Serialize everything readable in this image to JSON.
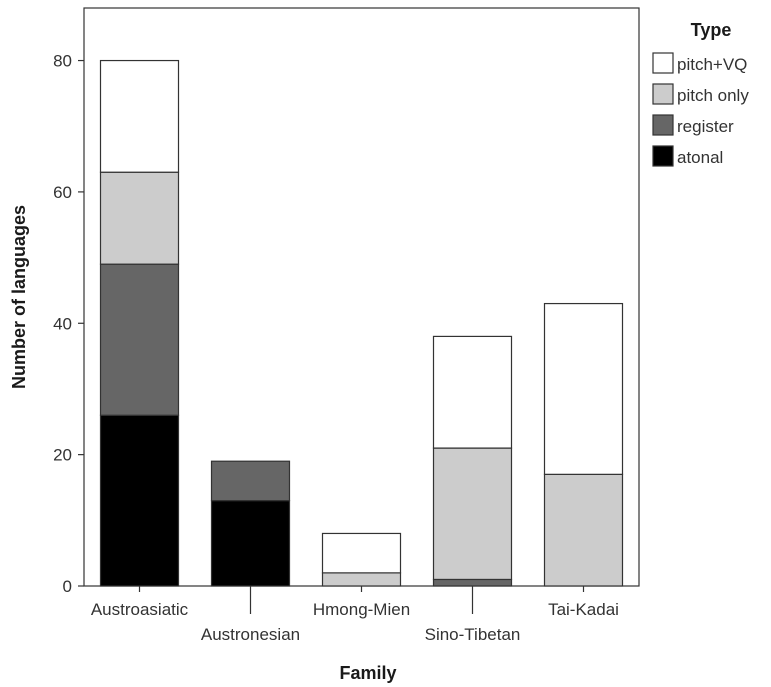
{
  "chart_data": {
    "type": "bar",
    "stacked": true,
    "categories": [
      "Austroasiatic",
      "Austronesian",
      "Hmong-Mien",
      "Sino-Tibetan",
      "Tai-Kadai"
    ],
    "series": [
      {
        "name": "atonal",
        "values": [
          26,
          13,
          0,
          0,
          0
        ],
        "color": "#000000"
      },
      {
        "name": "register",
        "values": [
          23,
          6,
          0,
          1,
          0
        ],
        "color": "#666666"
      },
      {
        "name": "pitch only",
        "values": [
          14,
          0,
          2,
          20,
          17
        ],
        "color": "#cccccc"
      },
      {
        "name": "pitch+VQ",
        "values": [
          17,
          0,
          6,
          17,
          26
        ],
        "color": "#ffffff"
      }
    ],
    "xlabel": "Family",
    "ylabel": "Number of languages",
    "ylim": [
      0,
      88
    ],
    "yticks": [
      0,
      20,
      40,
      60,
      80
    ],
    "legend": {
      "title": "Type",
      "placement": "right",
      "items": [
        "pitch+VQ",
        "pitch only",
        "register",
        "atonal"
      ]
    },
    "grid": false
  }
}
